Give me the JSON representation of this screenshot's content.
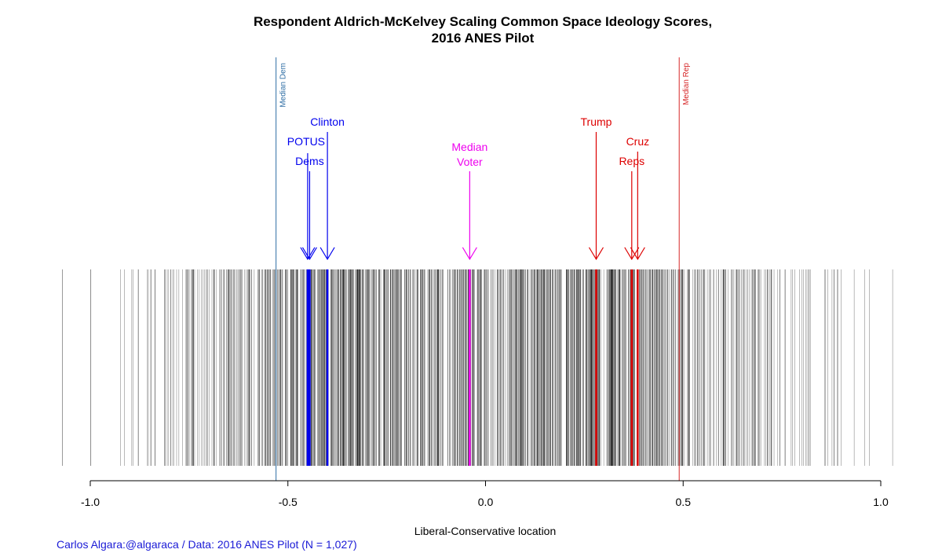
{
  "chart_data": {
    "type": "rug",
    "title_line1": "Respondent Aldrich-McKelvey Scaling Common Space Ideology Scores,",
    "title_line2": "2016 ANES Pilot",
    "xlabel": "Liberal-Conservative location",
    "xlim": [
      -1.0,
      1.0
    ],
    "xticks": [
      -1.0,
      -0.5,
      0.0,
      0.5,
      1.0
    ],
    "xtick_labels": [
      "-1.0",
      "-0.5",
      "0.0",
      "0.5",
      "1.0"
    ],
    "credit": "Carlos Algara:@algaraca / Data: 2016 ANES Pilot (N = 1,027)",
    "n_respondents": 1027,
    "respondent_range": [
      -1.07,
      1.03
    ],
    "reference_lines": [
      {
        "name": "Median Dem",
        "x": -0.53,
        "color": "#2e6da4"
      },
      {
        "name": "Median Rep",
        "x": 0.49,
        "color": "#d62728"
      }
    ],
    "stimuli": [
      {
        "label": "Clinton",
        "x": -0.4,
        "color": "#0000ee"
      },
      {
        "label": "POTUS",
        "x": -0.45,
        "color": "#0000ee"
      },
      {
        "label": "Dems",
        "x": -0.445,
        "color": "#0000ee"
      },
      {
        "label": "Median Voter",
        "x": -0.04,
        "color": "#ee00ee"
      },
      {
        "label": "Trump",
        "x": 0.28,
        "color": "#dd0000"
      },
      {
        "label": "Cruz",
        "x": 0.385,
        "color": "#dd0000"
      },
      {
        "label": "Reps",
        "x": 0.37,
        "color": "#dd0000"
      }
    ],
    "rug_color": "#000000"
  }
}
